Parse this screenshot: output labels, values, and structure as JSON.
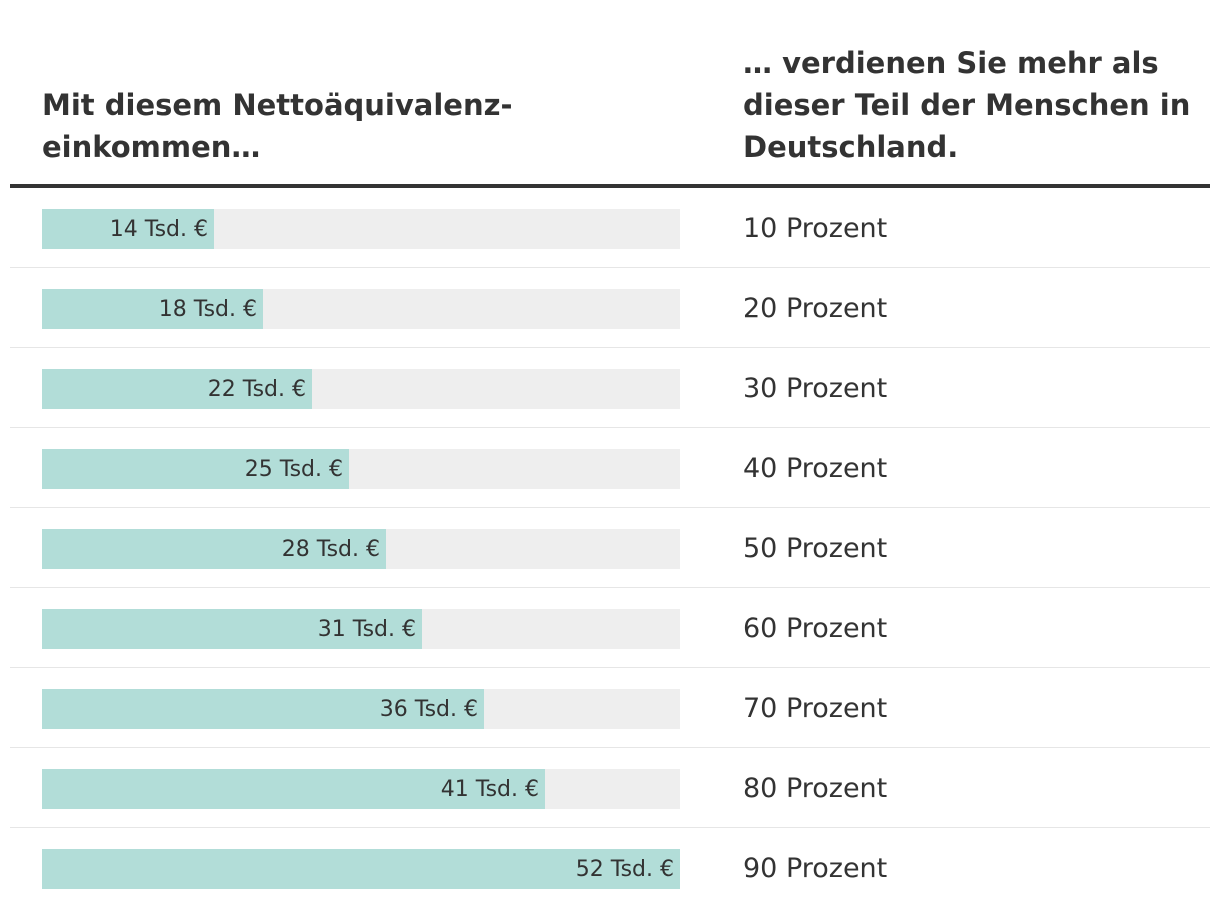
{
  "header": {
    "left": "Mit diesem Nettoäquivalenz-einkommen…",
    "right": "… verdienen Sie mehr als dieser Teil der Menschen in Deutschland."
  },
  "colors": {
    "bar_fill": "#b2ddd8",
    "bar_track": "#eeeeee",
    "text": "#333333"
  },
  "chart_data": {
    "type": "bar",
    "orientation": "horizontal",
    "xlim": [
      0,
      52
    ],
    "unit": "Tsd. €",
    "categories": [
      "10 Prozent",
      "20 Prozent",
      "30 Prozent",
      "40 Prozent",
      "50 Prozent",
      "60 Prozent",
      "70 Prozent",
      "80 Prozent",
      "90 Prozent"
    ],
    "values": [
      14,
      18,
      22,
      25,
      28,
      31,
      36,
      41,
      52
    ],
    "value_labels": [
      "14 Tsd. €",
      "18 Tsd. €",
      "22 Tsd. €",
      "25 Tsd. €",
      "28 Tsd. €",
      "31 Tsd. €",
      "36 Tsd. €",
      "41 Tsd. €",
      "52 Tsd. €"
    ]
  }
}
